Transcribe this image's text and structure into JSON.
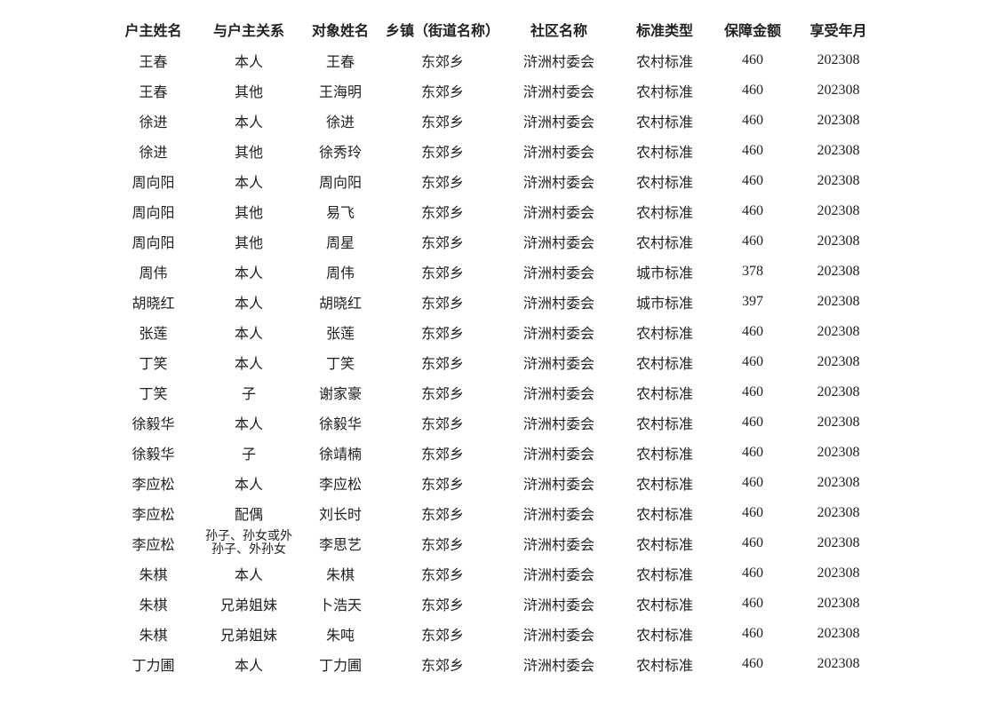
{
  "table": {
    "columns": [
      "户主姓名",
      "与户主关系",
      "对象姓名",
      "乡镇（街道名称）",
      "社区名称",
      "标准类型",
      "保障金额",
      "享受年月"
    ],
    "rows": [
      [
        "王春",
        "本人",
        "王春",
        "东郊乡",
        "浒洲村委会",
        "农村标准",
        "460",
        "202308"
      ],
      [
        "王春",
        "其他",
        "王海明",
        "东郊乡",
        "浒洲村委会",
        "农村标准",
        "460",
        "202308"
      ],
      [
        "徐进",
        "本人",
        "徐进",
        "东郊乡",
        "浒洲村委会",
        "农村标准",
        "460",
        "202308"
      ],
      [
        "徐进",
        "其他",
        "徐秀玲",
        "东郊乡",
        "浒洲村委会",
        "农村标准",
        "460",
        "202308"
      ],
      [
        "周向阳",
        "本人",
        "周向阳",
        "东郊乡",
        "浒洲村委会",
        "农村标准",
        "460",
        "202308"
      ],
      [
        "周向阳",
        "其他",
        "易飞",
        "东郊乡",
        "浒洲村委会",
        "农村标准",
        "460",
        "202308"
      ],
      [
        "周向阳",
        "其他",
        "周星",
        "东郊乡",
        "浒洲村委会",
        "农村标准",
        "460",
        "202308"
      ],
      [
        "周伟",
        "本人",
        "周伟",
        "东郊乡",
        "浒洲村委会",
        "城市标准",
        "378",
        "202308"
      ],
      [
        "胡晓红",
        "本人",
        "胡晓红",
        "东郊乡",
        "浒洲村委会",
        "城市标准",
        "397",
        "202308"
      ],
      [
        "张莲",
        "本人",
        "张莲",
        "东郊乡",
        "浒洲村委会",
        "农村标准",
        "460",
        "202308"
      ],
      [
        "丁笑",
        "本人",
        "丁笑",
        "东郊乡",
        "浒洲村委会",
        "农村标准",
        "460",
        "202308"
      ],
      [
        "丁笑",
        "子",
        "谢家豪",
        "东郊乡",
        "浒洲村委会",
        "农村标准",
        "460",
        "202308"
      ],
      [
        "徐毅华",
        "本人",
        "徐毅华",
        "东郊乡",
        "浒洲村委会",
        "农村标准",
        "460",
        "202308"
      ],
      [
        "徐毅华",
        "子",
        "徐靖楠",
        "东郊乡",
        "浒洲村委会",
        "农村标准",
        "460",
        "202308"
      ],
      [
        "李应松",
        "本人",
        "李应松",
        "东郊乡",
        "浒洲村委会",
        "农村标准",
        "460",
        "202308"
      ],
      [
        "李应松",
        "配偶",
        "刘长时",
        "东郊乡",
        "浒洲村委会",
        "农村标准",
        "460",
        "202308"
      ],
      [
        "李应松",
        "孙子、孙女或外孙子、外孙女",
        "李思艺",
        "东郊乡",
        "浒洲村委会",
        "农村标准",
        "460",
        "202308"
      ],
      [
        "朱棋",
        "本人",
        "朱棋",
        "东郊乡",
        "浒洲村委会",
        "农村标准",
        "460",
        "202308"
      ],
      [
        "朱棋",
        "兄弟姐妹",
        "卜浩天",
        "东郊乡",
        "浒洲村委会",
        "农村标准",
        "460",
        "202308"
      ],
      [
        "朱棋",
        "兄弟姐妹",
        "朱吨",
        "东郊乡",
        "浒洲村委会",
        "农村标准",
        "460",
        "202308"
      ],
      [
        "丁力圃",
        "本人",
        "丁力圃",
        "东郊乡",
        "浒洲村委会",
        "农村标准",
        "460",
        "202308"
      ]
    ]
  }
}
